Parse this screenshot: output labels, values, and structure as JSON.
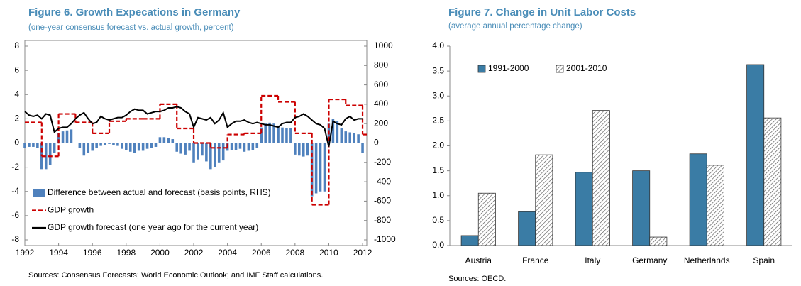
{
  "chart_data": [
    {
      "type": "combo",
      "title": "Figure 6. Growth Expecations in Germany",
      "subtitle": "(one-year consensus forecast vs. actual growth, percent)",
      "source": "Sources: Consensus Forecasts; World Economic Outlook; and IMF Staff calculations.",
      "xlim": [
        1992,
        2012.25
      ],
      "xticks": [
        1992,
        1994,
        1996,
        1998,
        2000,
        2002,
        2004,
        2006,
        2008,
        2010,
        2012
      ],
      "ylim": [
        -8,
        8
      ],
      "yticks": [
        -8,
        -6,
        -4,
        -2,
        0,
        2,
        4,
        6,
        8
      ],
      "y2lim": [
        -1000,
        1000
      ],
      "y2ticks": [
        -1000,
        -800,
        -600,
        -400,
        -200,
        0,
        200,
        400,
        600,
        800,
        1000
      ],
      "legend": "lower left",
      "x": [
        1992,
        1992.25,
        1992.5,
        1992.75,
        1993,
        1993.25,
        1993.5,
        1993.75,
        1994,
        1994.25,
        1994.5,
        1994.75,
        1995,
        1995.25,
        1995.5,
        1995.75,
        1996,
        1996.25,
        1996.5,
        1996.75,
        1997,
        1997.25,
        1997.5,
        1997.75,
        1998,
        1998.25,
        1998.5,
        1998.75,
        1999,
        1999.25,
        1999.5,
        1999.75,
        2000,
        2000.25,
        2000.5,
        2000.75,
        2001,
        2001.25,
        2001.5,
        2001.75,
        2002,
        2002.25,
        2002.5,
        2002.75,
        2003,
        2003.25,
        2003.5,
        2003.75,
        2004,
        2004.25,
        2004.5,
        2004.75,
        2005,
        2005.25,
        2005.5,
        2005.75,
        2006,
        2006.25,
        2006.5,
        2006.75,
        2007,
        2007.25,
        2007.5,
        2007.75,
        2008,
        2008.25,
        2008.5,
        2008.75,
        2009,
        2009.25,
        2009.5,
        2009.75,
        2010,
        2010.25,
        2010.5,
        2010.75,
        2011,
        2011.25,
        2011.5,
        2011.75,
        2012
      ],
      "series": [
        {
          "name": "Difference between actual and forecast (basis points, RHS)",
          "type": "bar",
          "axis": "y2",
          "color": "#4f81bd",
          "values": [
            -50,
            -40,
            -40,
            -50,
            -270,
            -270,
            -230,
            -100,
            100,
            120,
            130,
            140,
            0,
            -50,
            -130,
            -100,
            -80,
            -50,
            -30,
            -20,
            -10,
            -20,
            -30,
            -60,
            -70,
            -90,
            -100,
            -80,
            -80,
            -60,
            -50,
            -40,
            60,
            60,
            50,
            40,
            -90,
            -110,
            -120,
            -80,
            -200,
            -170,
            -130,
            -190,
            -270,
            -250,
            -200,
            -180,
            -80,
            -70,
            -70,
            -60,
            -90,
            -80,
            -70,
            -50,
            160,
            200,
            210,
            200,
            180,
            160,
            150,
            150,
            -120,
            -130,
            -140,
            -130,
            -550,
            -520,
            -500,
            -500,
            200,
            250,
            230,
            150,
            120,
            110,
            100,
            90,
            -100
          ]
        },
        {
          "name": "GDP growth",
          "type": "step",
          "color": "#cc0000",
          "dashed": true,
          "x": [
            1992,
            1993,
            1994,
            1995,
            1996,
            1997,
            1998,
            1999,
            2000,
            2001,
            2002,
            2003,
            2004,
            2005,
            2006,
            2007,
            2008,
            2009,
            2010,
            2011,
            2012
          ],
          "values": [
            1.7,
            -1.1,
            2.4,
            1.7,
            0.8,
            1.8,
            2.0,
            2.0,
            3.2,
            1.2,
            0.0,
            -0.4,
            0.7,
            0.8,
            3.9,
            3.4,
            0.8,
            -5.1,
            3.6,
            3.1,
            0.7
          ]
        },
        {
          "name": "GDP growth forecast (one year ago for the current year)",
          "type": "line",
          "color": "#000000",
          "values": [
            2.6,
            2.3,
            2.2,
            2.3,
            2.0,
            2.4,
            2.3,
            0.9,
            1.2,
            1.3,
            1.3,
            1.6,
            2.0,
            2.3,
            2.5,
            2.0,
            1.6,
            1.7,
            2.2,
            2.0,
            1.9,
            2.0,
            2.1,
            2.1,
            2.3,
            2.6,
            2.8,
            2.7,
            2.7,
            2.4,
            2.5,
            2.6,
            2.6,
            2.7,
            2.9,
            2.9,
            3.0,
            2.9,
            2.6,
            2.4,
            1.3,
            2.1,
            2.0,
            1.9,
            2.1,
            1.6,
            1.9,
            2.5,
            1.3,
            1.6,
            1.8,
            1.8,
            1.9,
            1.7,
            1.6,
            1.7,
            1.6,
            1.5,
            1.5,
            1.4,
            1.3,
            1.6,
            1.7,
            1.7,
            2.1,
            2.2,
            2.4,
            2.2,
            1.9,
            1.6,
            1.5,
            1.2,
            -0.3,
            1.8,
            1.6,
            1.5,
            2.0,
            2.2,
            1.9,
            2.0,
            2.0
          ]
        }
      ]
    },
    {
      "type": "bar",
      "title": "Figure 7. Change in Unit Labor Costs",
      "subtitle": "(average annual percentage change)",
      "source": "Sources: OECD.",
      "categories": [
        "Austria",
        "France",
        "Italy",
        "Germany",
        "Netherlands",
        "Spain"
      ],
      "ylim": [
        0,
        4
      ],
      "yticks": [
        {
          "value": 0,
          "label": "0.0"
        },
        {
          "value": 0.5,
          "label": "0.5"
        },
        {
          "value": 1,
          "label": "1.0"
        },
        {
          "value": 1.5,
          "label": "1.5"
        },
        {
          "value": 2,
          "label": "2.0"
        },
        {
          "value": 2.5,
          "label": "2.5"
        },
        {
          "value": 3,
          "label": "3.0"
        },
        {
          "value": 3.5,
          "label": "3.5"
        },
        {
          "value": 4,
          "label": "4.0"
        }
      ],
      "legend": "upper left",
      "series": [
        {
          "name": "1991-2000",
          "color": "#3a7ca5",
          "values": [
            0.2,
            0.68,
            1.47,
            1.5,
            1.84,
            3.63
          ]
        },
        {
          "name": "2001-2010",
          "color": "#555555",
          "hatched": true,
          "values": [
            1.05,
            1.82,
            2.71,
            0.17,
            1.61,
            2.56
          ]
        }
      ]
    }
  ]
}
